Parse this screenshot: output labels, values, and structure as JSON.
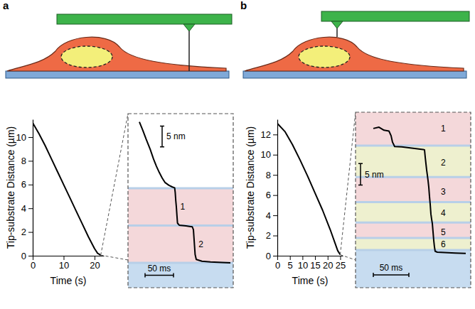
{
  "chart_data": [
    {
      "label": "a",
      "type": "line",
      "color": "#000000",
      "x_label": "Time (s)",
      "y_label": "Tip-substrate Distance (µm)",
      "x": [
        0,
        2,
        4,
        6,
        8,
        10,
        12,
        14,
        16,
        18,
        20,
        21,
        22
      ],
      "values": [
        11.2,
        10.3,
        9.3,
        8.2,
        7.1,
        6.0,
        4.9,
        3.8,
        2.7,
        1.6,
        0.6,
        0.2,
        0.05
      ],
      "xlim": [
        0,
        23
      ],
      "ylim": [
        0,
        11.5
      ],
      "xticks": [
        0,
        10,
        20
      ],
      "yticks": [
        0,
        2,
        4,
        6,
        8,
        10
      ],
      "inset": {
        "type": "line",
        "color": "#000000",
        "tick_labels": false,
        "x": [
          0,
          6,
          12,
          19,
          25,
          30,
          35,
          40,
          45,
          52,
          58,
          62,
          63,
          64,
          65,
          66,
          67,
          70,
          76,
          82,
          88,
          93,
          95,
          96,
          97,
          98,
          100,
          110,
          125,
          145,
          160
        ],
        "values": [
          34,
          32,
          29.8,
          27.4,
          25,
          23.3,
          21.8,
          20.5,
          19.4,
          18.7,
          18.3,
          18.1,
          17,
          15,
          13.5,
          11.5,
          9.6,
          9.1,
          9,
          8.9,
          8.8,
          8.7,
          8,
          6,
          4,
          2,
          0.8,
          0.4,
          0.2,
          0.1,
          0
        ],
        "xlim": [
          -20,
          165
        ],
        "ylim": [
          -6,
          36
        ],
        "scale_bars": [
          {
            "label": "5 nm",
            "axis": "y",
            "value": 5,
            "x": 40,
            "y": 28
          },
          {
            "label": "50 ms",
            "axis": "x",
            "value": 50,
            "x": 10,
            "y": -3
          }
        ],
        "annotations": [
          {
            "text": "1",
            "x": 72,
            "y": 13.5
          },
          {
            "text": "2",
            "x": 104,
            "y": 4.5
          }
        ]
      }
    },
    {
      "label": "b",
      "type": "line",
      "color": "#000000",
      "x_label": "Time (s)",
      "y_label": "Tip-substrate Distance (µm)",
      "x": [
        0,
        3,
        6,
        9,
        12,
        15,
        18,
        21,
        23,
        24,
        25
      ],
      "values": [
        13.1,
        12.3,
        11.0,
        9.5,
        7.9,
        6.2,
        4.5,
        2.6,
        1.2,
        0.5,
        0.1
      ],
      "xlim": [
        0,
        26
      ],
      "ylim": [
        0,
        13.5
      ],
      "xticks": [
        0,
        5,
        10,
        15,
        20,
        25
      ],
      "yticks": [
        0,
        2,
        4,
        6,
        8,
        10,
        12
      ],
      "inset": {
        "type": "line",
        "color": "#000000",
        "tick_labels": false,
        "x": [
          0,
          8,
          15,
          22,
          25,
          27,
          30,
          40,
          50,
          60,
          70,
          72,
          73,
          74,
          75,
          76,
          77,
          78,
          79,
          80,
          81,
          82,
          83,
          84,
          85,
          86,
          87,
          90,
          100,
          115,
          130
        ],
        "values": [
          29.2,
          29.5,
          28.8,
          28.6,
          27.5,
          26,
          25,
          24.9,
          24.7,
          24.5,
          24.3,
          24.2,
          22.5,
          21,
          19.5,
          18.3,
          17,
          15.5,
          13.3,
          11.5,
          9.2,
          8,
          7,
          5,
          3,
          1.5,
          0.5,
          0.3,
          0.2,
          0.1,
          0
        ],
        "xlim": [
          -25,
          137
        ],
        "ylim": [
          -8,
          33
        ],
        "scale_bars": [
          {
            "label": "5 nm",
            "axis": "y",
            "value": 5,
            "x": -18,
            "y": 16
          },
          {
            "label": "50 ms",
            "axis": "x",
            "value": 50,
            "x": 0,
            "y": -5
          }
        ],
        "annotations": [
          {
            "text": "1",
            "x": 95,
            "y": 29.2
          },
          {
            "text": "2",
            "x": 95,
            "y": 21.2
          },
          {
            "text": "3",
            "x": 95,
            "y": 14.5
          },
          {
            "text": "4",
            "x": 95,
            "y": 9.5
          },
          {
            "text": "5",
            "x": 95,
            "y": 5
          },
          {
            "text": "6",
            "x": 95,
            "y": 2.2
          }
        ]
      }
    }
  ]
}
